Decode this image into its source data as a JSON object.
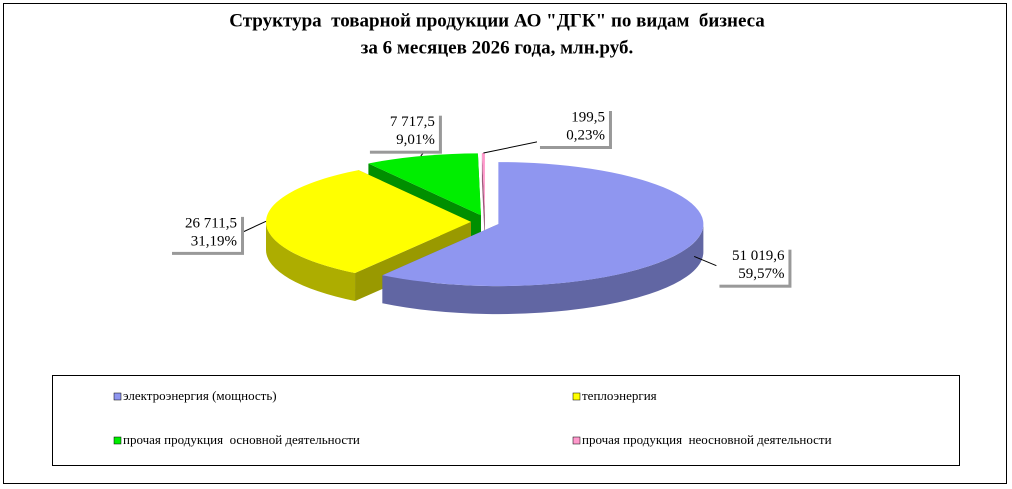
{
  "chart_data": {
    "type": "pie",
    "title": "Структура  товарной продукции АО \"ДГК\" по видам  бизнеса",
    "subtitle": "за 6 месяцев 2026 года, млн.руб.",
    "categories": [
      "электроэнергия (мощность)",
      "теплоэнергия",
      "прочая продукция  основной деятельности",
      "прочая продукция  неосновной деятельности"
    ],
    "values": [
      51019.6,
      26711.5,
      7717.5,
      199.5
    ],
    "value_labels": [
      "51 019,6",
      "26 711,5",
      "7 717,5",
      "199,5"
    ],
    "percents": [
      59.57,
      31.19,
      9.01,
      0.23
    ],
    "percent_labels": [
      "59,57%",
      "31,19%",
      "9,01%",
      "0,23%"
    ],
    "colors": [
      "#8f96f0",
      "#ffff00",
      "#00ee00",
      "#ff99cc"
    ],
    "legend": "bottom"
  }
}
